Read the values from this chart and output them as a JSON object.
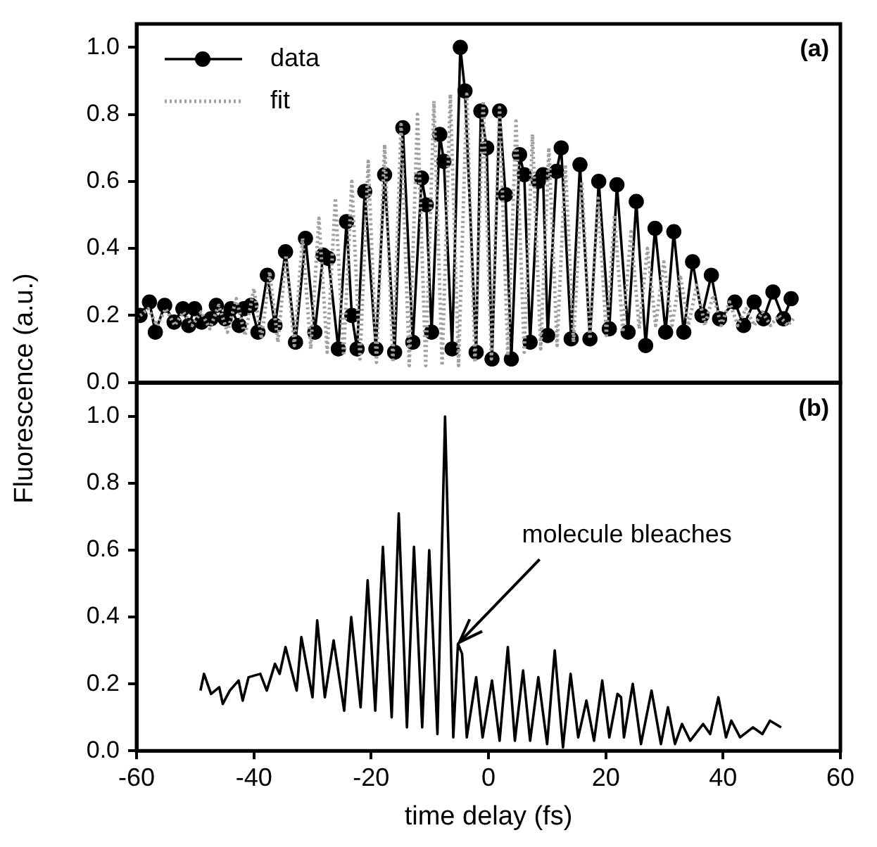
{
  "chart_data": [
    {
      "type": "line",
      "ylabel": "Fluorescence (a.u.)",
      "annotations": [
        "(a)"
      ],
      "legend": "top left",
      "grid": false,
      "tick_labels": "y",
      "xlim": [
        -60,
        60
      ],
      "xticks": [
        -60,
        -40,
        -20,
        0,
        20,
        40,
        60
      ],
      "ylim": [
        0,
        1.07
      ],
      "yticks": [
        {
          "value": 0,
          "label": "0.0"
        },
        {
          "value": 0.2,
          "label": "0.2"
        },
        {
          "value": 0.4,
          "label": "0.4"
        },
        {
          "value": 0.6,
          "label": "0.6"
        },
        {
          "value": 0.8,
          "label": "0.8"
        },
        {
          "value": 1,
          "label": "1.0"
        }
      ],
      "series": [
        {
          "name": "data",
          "color": "#000000",
          "marker": "circle",
          "line_style": "solid",
          "x": [
            -59.4,
            -57.8,
            -56.8,
            -55.2,
            -53.6,
            -52.1,
            -51.1,
            -50.1,
            -48.9,
            -47.3,
            -46.4,
            -44.9,
            -43.9,
            -42.5,
            -41.7,
            -40.5,
            -39.3,
            -37.7,
            -36.4,
            -34.6,
            -32.9,
            -31.2,
            -29.6,
            -28.2,
            -27.3,
            -25.6,
            -24.2,
            -23.3,
            -22.4,
            -21.1,
            -19.2,
            -17.7,
            -16.0,
            -14.6,
            -12.9,
            -11.4,
            -10.6,
            -9.7,
            -8.3,
            -7.6,
            -6.2,
            -4.8,
            -4.0,
            -2.1,
            -1.3,
            -0.3,
            0.6,
            1.9,
            2.9,
            3.9,
            5.3,
            6.1,
            7.1,
            8.5,
            9.3,
            10.1,
            11.6,
            12.4,
            14.1,
            15.6,
            17.3,
            18.8,
            20.6,
            21.9,
            23.8,
            25.2,
            26.8,
            28.4,
            30.2,
            31.6,
            33.3,
            34.8,
            36.4,
            38.0,
            39.4,
            42.0,
            43.5,
            45.3,
            46.9,
            48.5,
            50.3,
            51.6
          ],
          "values": [
            0.2,
            0.24,
            0.15,
            0.23,
            0.18,
            0.22,
            0.17,
            0.22,
            0.18,
            0.19,
            0.23,
            0.19,
            0.22,
            0.17,
            0.22,
            0.23,
            0.15,
            0.32,
            0.17,
            0.39,
            0.12,
            0.43,
            0.15,
            0.38,
            0.37,
            0.1,
            0.48,
            0.2,
            0.1,
            0.57,
            0.1,
            0.62,
            0.09,
            0.76,
            0.12,
            0.61,
            0.53,
            0.15,
            0.74,
            0.66,
            0.1,
            1.0,
            0.87,
            0.09,
            0.81,
            0.7,
            0.07,
            0.81,
            0.56,
            0.07,
            0.68,
            0.62,
            0.12,
            0.6,
            0.62,
            0.14,
            0.63,
            0.7,
            0.13,
            0.65,
            0.13,
            0.6,
            0.16,
            0.59,
            0.15,
            0.54,
            0.11,
            0.46,
            0.15,
            0.45,
            0.15,
            0.36,
            0.2,
            0.32,
            0.19,
            0.24,
            0.17,
            0.24,
            0.19,
            0.27,
            0.19,
            0.25
          ]
        },
        {
          "name": "fit",
          "color": "#a0a0a0",
          "marker": "none",
          "line_style": "dotted",
          "x": [
            -60,
            -58,
            -56.5,
            -55,
            -53.5,
            -52,
            -50.5,
            -49,
            -47.5,
            -46,
            -44.5,
            -43,
            -41.5,
            -40,
            -38.7,
            -37.3,
            -35.9,
            -34.5,
            -33.1,
            -31.7,
            -30.3,
            -28.9,
            -27.5,
            -26.1,
            -24.7,
            -23.3,
            -21.9,
            -20.5,
            -19.1,
            -17.7,
            -16.3,
            -14.9,
            -13.5,
            -12.1,
            -10.7,
            -9.3,
            -7.9,
            -6.5,
            -5.1,
            -3.7,
            -2.3,
            -0.9,
            0.5,
            1.9,
            3.3,
            4.7,
            6.1,
            7.5,
            8.9,
            10.3,
            11.7,
            13.1,
            14.5,
            15.9,
            17.3,
            18.7,
            20.1,
            21.5,
            22.9,
            24.3,
            25.7,
            27.1,
            28.5,
            29.9,
            31.3,
            32.7,
            34.1,
            35.5,
            36.9,
            38.3,
            39.7,
            41.1,
            42.5,
            43.9,
            45.3,
            46.7,
            48.1,
            49.5,
            51,
            52
          ],
          "values": [
            0.19,
            0.22,
            0.17,
            0.22,
            0.17,
            0.21,
            0.17,
            0.21,
            0.16,
            0.23,
            0.15,
            0.25,
            0.14,
            0.28,
            0.13,
            0.33,
            0.12,
            0.38,
            0.11,
            0.43,
            0.1,
            0.49,
            0.09,
            0.55,
            0.08,
            0.6,
            0.07,
            0.66,
            0.06,
            0.71,
            0.06,
            0.77,
            0.05,
            0.8,
            0.05,
            0.84,
            0.05,
            0.86,
            0.05,
            0.86,
            0.06,
            0.84,
            0.07,
            0.82,
            0.08,
            0.78,
            0.09,
            0.74,
            0.1,
            0.7,
            0.11,
            0.65,
            0.12,
            0.6,
            0.13,
            0.55,
            0.14,
            0.5,
            0.15,
            0.45,
            0.16,
            0.4,
            0.17,
            0.36,
            0.17,
            0.32,
            0.17,
            0.29,
            0.17,
            0.26,
            0.17,
            0.24,
            0.17,
            0.22,
            0.17,
            0.21,
            0.17,
            0.2,
            0.17,
            0.19
          ]
        }
      ]
    },
    {
      "type": "line",
      "xlabel": "time delay (fs)",
      "annotations": [
        "(b)",
        {
          "text": "molecule bleaches",
          "x": -5.2,
          "y": 0.32
        }
      ],
      "grid": false,
      "marker": "none",
      "xlim": [
        -60,
        60
      ],
      "xticks": [
        -60,
        -40,
        -20,
        0,
        20,
        40,
        60
      ],
      "ylim": [
        0,
        1.1
      ],
      "yticks": [
        {
          "value": 0,
          "label": "0.0"
        },
        {
          "value": 0.2,
          "label": "0.2"
        },
        {
          "value": 0.4,
          "label": "0.4"
        },
        {
          "value": 0.6,
          "label": "0.6"
        },
        {
          "value": 0.8,
          "label": "0.8"
        },
        {
          "value": 1,
          "label": "1.0"
        }
      ],
      "series": [
        {
          "color": "#000000",
          "x": [
            -49.1,
            -48.5,
            -47.3,
            -45.9,
            -45.3,
            -44.1,
            -42.6,
            -41.9,
            -40.9,
            -38.9,
            -37.8,
            -36.4,
            -35.6,
            -34.6,
            -32.7,
            -31.9,
            -30.0,
            -29.2,
            -27.9,
            -26.4,
            -24.6,
            -23.4,
            -21.8,
            -20.6,
            -19.3,
            -18.0,
            -16.5,
            -15.3,
            -13.9,
            -12.7,
            -11.3,
            -10.1,
            -8.7,
            -7.4,
            -6.0,
            -5.2,
            -4.5,
            -3.7,
            -2.1,
            -1.0,
            0.6,
            1.9,
            3.3,
            4.5,
            5.9,
            7.1,
            8.5,
            10.0,
            11.3,
            12.7,
            14.0,
            15.3,
            16.7,
            18.0,
            19.4,
            20.6,
            22.0,
            22.6,
            23.1,
            24.6,
            26.0,
            27.8,
            29.4,
            30.6,
            31.8,
            33.0,
            34.4,
            36.6,
            37.8,
            39.2,
            40.5,
            41.4,
            42.9,
            45.1,
            46.7,
            48.0,
            49.9
          ],
          "values": [
            0.18,
            0.23,
            0.17,
            0.19,
            0.14,
            0.18,
            0.21,
            0.15,
            0.22,
            0.23,
            0.18,
            0.26,
            0.23,
            0.31,
            0.18,
            0.34,
            0.16,
            0.39,
            0.16,
            0.33,
            0.12,
            0.4,
            0.13,
            0.51,
            0.12,
            0.61,
            0.1,
            0.71,
            0.07,
            0.61,
            0.07,
            0.6,
            0.05,
            1.0,
            0.04,
            0.32,
            0.29,
            0.04,
            0.22,
            0.04,
            0.21,
            0.03,
            0.31,
            0.03,
            0.24,
            0.03,
            0.22,
            0.02,
            0.3,
            0.01,
            0.23,
            0.04,
            0.15,
            0.03,
            0.21,
            0.04,
            0.17,
            0.16,
            0.04,
            0.2,
            0.02,
            0.18,
            0.02,
            0.13,
            0.02,
            0.08,
            0.03,
            0.08,
            0.05,
            0.16,
            0.04,
            0.09,
            0.04,
            0.07,
            0.05,
            0.09,
            0.07
          ]
        }
      ]
    }
  ]
}
